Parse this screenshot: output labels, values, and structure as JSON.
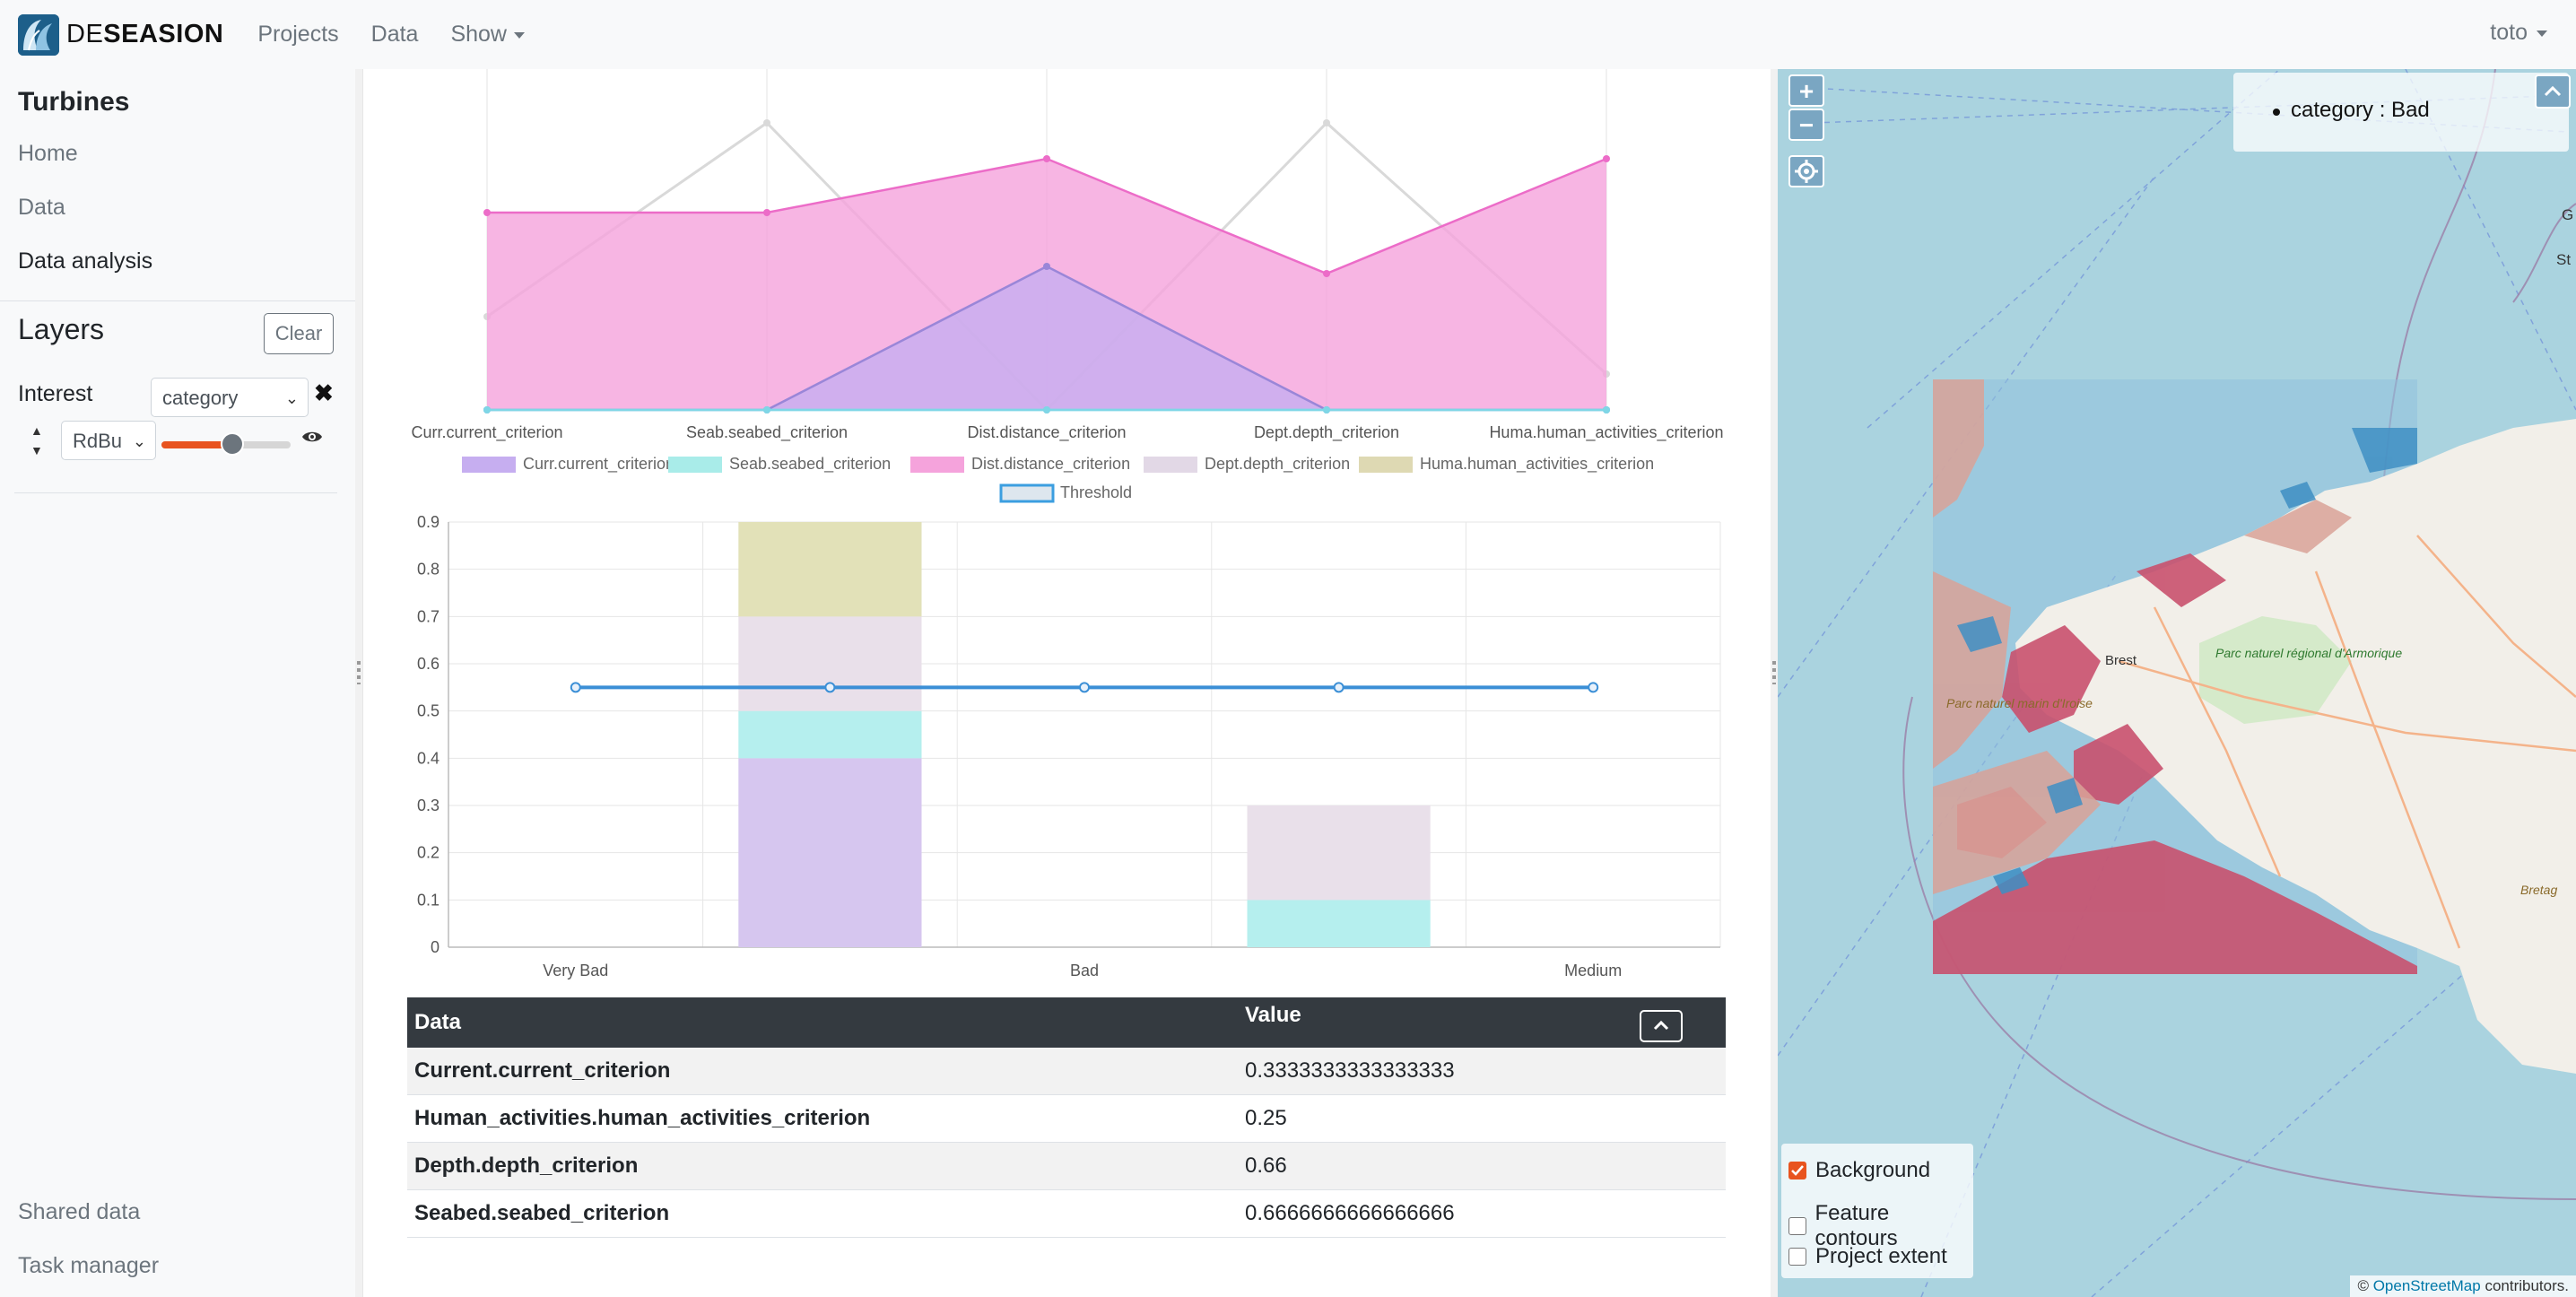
{
  "navbar": {
    "brand_prefix": "DE",
    "brand_bold": "SEASION",
    "links": [
      "Projects",
      "Data",
      "Show"
    ],
    "user": "toto"
  },
  "sidebar": {
    "project_title": "Turbines",
    "nav": [
      "Home",
      "Data",
      "Data analysis"
    ],
    "layers_title": "Layers",
    "clear_label": "Clear",
    "interest_label": "Interest",
    "interest_value": "category",
    "colormap_value": "RdBu",
    "opacity_level": 0.55,
    "bottom_links": [
      "Shared data",
      "Task manager"
    ]
  },
  "chart_data": [
    {
      "type": "radar",
      "axes": [
        "Curr.current_criterion",
        "Seab.seabed_criterion",
        "Dist.distance_criterion",
        "Dept.depth_criterion",
        "Huma.human_activities_criterion"
      ],
      "series": [
        {
          "name": "Curr.current_criterion",
          "values": [
            0,
            0,
            0.4,
            0,
            0
          ],
          "color": "#c6aef0"
        },
        {
          "name": "Seab.seabed_criterion",
          "values": [
            0,
            0,
            0,
            0,
            0
          ],
          "color": "#a9ece9"
        },
        {
          "name": "Dist.distance_criterion",
          "values": [
            0.55,
            0.55,
            0.7,
            0.38,
            0.7
          ],
          "color": "#f5a3dc"
        },
        {
          "name": "Dept.depth_criterion",
          "values": [
            0.26,
            0.8,
            0,
            0.8,
            0.1
          ],
          "color": "#e2d8e6"
        },
        {
          "name": "Huma.human_activities_criterion",
          "values": [
            0,
            0,
            0,
            0,
            0
          ],
          "color": "#ded9b3"
        }
      ],
      "threshold_label": "Threshold",
      "threshold_color": "#3b9ee0"
    },
    {
      "type": "bar",
      "stacked": true,
      "categories": [
        "Very Bad",
        "",
        "Bad",
        "",
        "Medium"
      ],
      "y_ticks": [
        0,
        0.1,
        0.2,
        0.3,
        0.4,
        0.5,
        0.6,
        0.7,
        0.8,
        0.9
      ],
      "ylim": [
        0,
        0.9
      ],
      "series": [
        {
          "name": "Curr.current_criterion",
          "values": [
            0,
            0.4,
            0,
            0,
            0
          ],
          "color": "#d6c6ef"
        },
        {
          "name": "Seab.seabed_criterion",
          "values": [
            0,
            0.1,
            0,
            0.1,
            0
          ],
          "color": "#b5efee"
        },
        {
          "name": "Dept.depth_criterion",
          "values": [
            0,
            0.2,
            0,
            0.2,
            0
          ],
          "color": "#e9e0ea"
        },
        {
          "name": "Huma.human_activities_criterion",
          "values": [
            0,
            0.2,
            0,
            0,
            0
          ],
          "color": "#e2e1b8"
        }
      ],
      "threshold": {
        "name": "Threshold",
        "value": 0.55,
        "color": "#3b8fd6"
      }
    }
  ],
  "table": {
    "headers": [
      "Data",
      "Value"
    ],
    "rows": [
      {
        "key": "Current.current_criterion",
        "value": "0.3333333333333333"
      },
      {
        "key": "Human_activities.human_activities_criterion",
        "value": "0.25"
      },
      {
        "key": "Depth.depth_criterion",
        "value": "0.66"
      },
      {
        "key": "Seabed.seabed_criterion",
        "value": "0.6666666666666666"
      }
    ]
  },
  "map": {
    "zoom_in": "+",
    "zoom_out": "−",
    "legend_item": "category : Bad",
    "place_labels": [
      "Brest",
      "Parc naturel régional d'Armorique",
      "Parc naturel marin d'Iroise",
      "St F",
      "G",
      "Bretag"
    ],
    "layers": [
      {
        "label": "Background",
        "checked": true
      },
      {
        "label": "Feature contours",
        "checked": false
      },
      {
        "label": "Project extent",
        "checked": false
      }
    ],
    "attribution_prefix": "©",
    "attribution_link": "OpenStreetMap",
    "attribution_suffix": "contributors."
  }
}
